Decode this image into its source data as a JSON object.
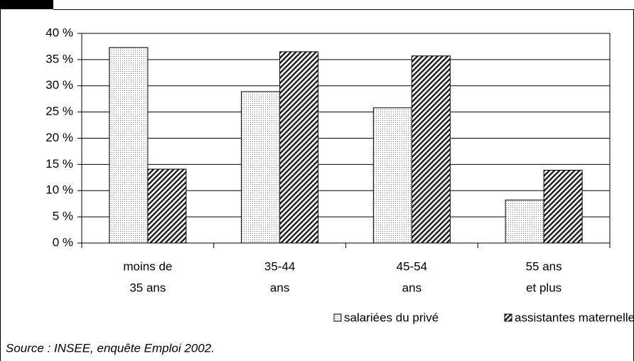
{
  "chart_data": {
    "type": "bar",
    "categories": [
      [
        "moins de",
        "35 ans"
      ],
      [
        "35-44",
        "ans"
      ],
      [
        "45-54",
        "ans"
      ],
      [
        "55 ans",
        "et plus"
      ]
    ],
    "series": [
      {
        "name": "salariées du privé",
        "color": "#000000",
        "pattern": "dots",
        "values": [
          37.3,
          28.9,
          25.8,
          8.2
        ]
      },
      {
        "name": "assistantes maternelles",
        "color": "#000000",
        "pattern": "hatch",
        "values": [
          14.1,
          36.5,
          35.7,
          13.9
        ]
      }
    ],
    "ylim": [
      0,
      40
    ],
    "yticks": [
      {
        "value": 0,
        "label": "0 %"
      },
      {
        "value": 5,
        "label": "5 %"
      },
      {
        "value": 10,
        "label": "10 %"
      },
      {
        "value": 15,
        "label": "15 %"
      },
      {
        "value": 20,
        "label": "20 %"
      },
      {
        "value": 25,
        "label": "25 %"
      },
      {
        "value": 30,
        "label": "30 %"
      },
      {
        "value": 35,
        "label": "35 %"
      },
      {
        "value": 40,
        "label": "40 %"
      }
    ],
    "grid": true,
    "legend": "bottom",
    "source": "Source : INSEE, enquête Emploi 2002."
  }
}
